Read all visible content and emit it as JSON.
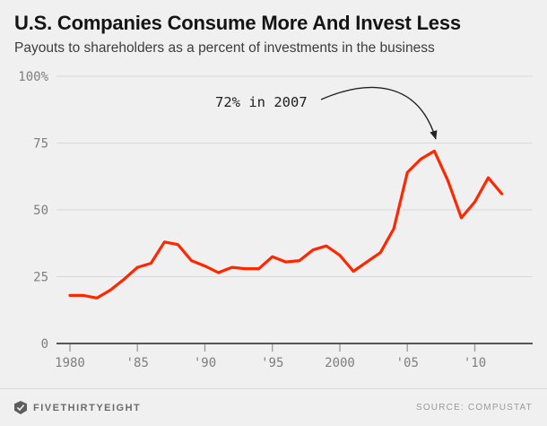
{
  "chart_data": {
    "type": "line",
    "title": "U.S. Companies Consume More And Invest Less",
    "subtitle": "Payouts to shareholders as a percent of investments in the business",
    "x": [
      1980,
      1981,
      1982,
      1983,
      1984,
      1985,
      1986,
      1987,
      1988,
      1989,
      1990,
      1991,
      1992,
      1993,
      1994,
      1995,
      1996,
      1997,
      1998,
      1999,
      2000,
      2001,
      2002,
      2003,
      2004,
      2005,
      2006,
      2007,
      2008,
      2009,
      2010,
      2011,
      2012
    ],
    "values": [
      18,
      18,
      17,
      20,
      24,
      28.5,
      30,
      38,
      37,
      31,
      29,
      26.5,
      28.5,
      28,
      28,
      32.5,
      30.5,
      31,
      35,
      36.5,
      33,
      27,
      30.5,
      34,
      43,
      64,
      69,
      72,
      61,
      47,
      53,
      62,
      56
    ],
    "ylim": [
      0,
      105
    ],
    "grid": true,
    "legend": "none",
    "yticks": [
      {
        "v": 0,
        "label": "0"
      },
      {
        "v": 25,
        "label": "25"
      },
      {
        "v": 50,
        "label": "50"
      },
      {
        "v": 75,
        "label": "75"
      },
      {
        "v": 100,
        "label": "100%"
      }
    ],
    "xticks": [
      {
        "v": 1980,
        "label": "1980"
      },
      {
        "v": 1985,
        "label": "'85"
      },
      {
        "v": 1990,
        "label": "'90"
      },
      {
        "v": 1995,
        "label": "'95"
      },
      {
        "v": 2000,
        "label": "2000"
      },
      {
        "v": 2005,
        "label": "'05"
      },
      {
        "v": 2010,
        "label": "'10"
      }
    ],
    "annotation": {
      "text": "72% in 2007",
      "points_to": {
        "x": 2007,
        "y": 72
      }
    },
    "colors": {
      "line": "#ff2700",
      "grid": "#d9d9d9",
      "zero_axis": "#222222",
      "tick": "#999999",
      "arrow": "#222222",
      "background": "#f0f0f0"
    }
  },
  "footer": {
    "brand": "FIVETHIRTYEIGHT",
    "source": "SOURCE: COMPUSTAT"
  }
}
